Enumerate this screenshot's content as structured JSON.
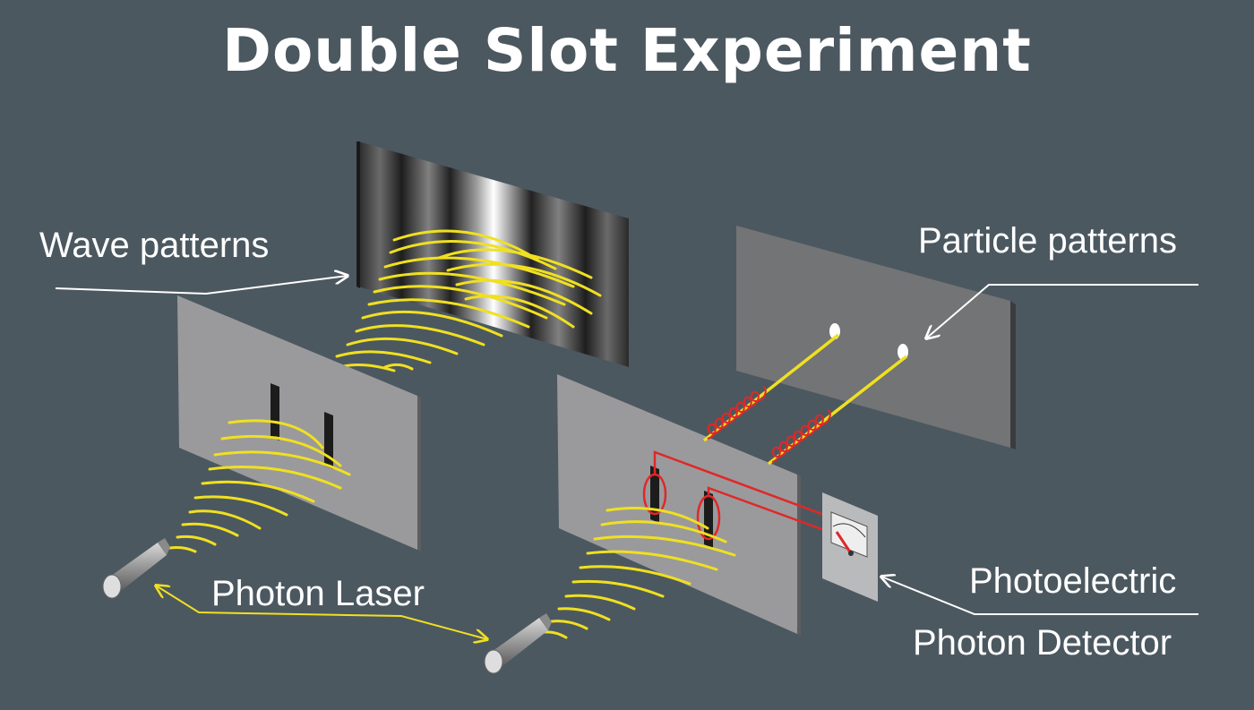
{
  "title": "Double Slot Experiment",
  "labels": {
    "wave_patterns": "Wave patterns",
    "particle_patterns": "Particle patterns",
    "photon_laser": "Photon Laser",
    "photoelectric": "Photoelectric",
    "photon_detector": "Photon Detector"
  },
  "colors": {
    "background": "#4c5860",
    "panel": "#9a9a9c",
    "panel_dark": "#6b6c6e",
    "wave": "#f0e020",
    "wire": "#e02828",
    "label": "#ffffff"
  }
}
